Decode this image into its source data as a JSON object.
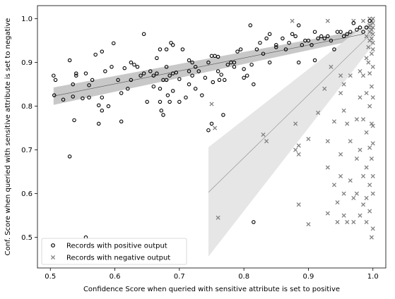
{
  "chart_data": {
    "type": "scatter",
    "title": "",
    "xlabel": "Confidence Score when queried with sensitive attribute is set to positive",
    "ylabel": "Conf. Score when queried with sensitive attribute is set to negative",
    "xlim": [
      0.48,
      1.02
    ],
    "ylim": [
      0.43,
      1.03
    ],
    "xticks": [
      0.5,
      0.6,
      0.7,
      0.8,
      0.9,
      1.0
    ],
    "xtick_labels": [
      "0.5",
      "0.6",
      "0.7",
      "0.8",
      "0.9",
      "1.0"
    ],
    "yticks": [
      0.5,
      0.6,
      0.7,
      0.8,
      0.9,
      1.0
    ],
    "ytick_labels": [
      "0.5",
      "0.6",
      "0.7",
      "0.8",
      "0.9",
      "1.0"
    ],
    "grid": false,
    "legend_position": "lower-left",
    "series": [
      {
        "name": "Records with positive output",
        "marker": "circle",
        "color": "#000000",
        "points": [
          [
            0.505,
            0.87
          ],
          [
            0.508,
            0.86
          ],
          [
            0.506,
            0.825
          ],
          [
            0.52,
            0.815
          ],
          [
            0.53,
            0.905
          ],
          [
            0.53,
            0.685
          ],
          [
            0.535,
            0.85
          ],
          [
            0.535,
            0.822
          ],
          [
            0.537,
            0.768
          ],
          [
            0.54,
            0.87
          ],
          [
            0.54,
            0.875
          ],
          [
            0.55,
            0.818
          ],
          [
            0.555,
            0.875
          ],
          [
            0.555,
            0.5
          ],
          [
            0.56,
            0.848
          ],
          [
            0.56,
            0.82
          ],
          [
            0.565,
            0.86
          ],
          [
            0.57,
            0.918
          ],
          [
            0.575,
            0.76
          ],
          [
            0.575,
            0.802
          ],
          [
            0.58,
            0.82
          ],
          [
            0.58,
            0.79
          ],
          [
            0.58,
            0.925
          ],
          [
            0.585,
            0.88
          ],
          [
            0.59,
            0.8
          ],
          [
            0.595,
            0.89
          ],
          [
            0.598,
            0.944
          ],
          [
            0.605,
            0.86
          ],
          [
            0.61,
            0.765
          ],
          [
            0.61,
            0.83
          ],
          [
            0.615,
            0.887
          ],
          [
            0.62,
            0.84
          ],
          [
            0.625,
            0.86
          ],
          [
            0.625,
            0.9
          ],
          [
            0.63,
            0.895
          ],
          [
            0.635,
            0.89
          ],
          [
            0.64,
            0.87
          ],
          [
            0.645,
            0.965
          ],
          [
            0.645,
            0.875
          ],
          [
            0.65,
            0.81
          ],
          [
            0.655,
            0.88
          ],
          [
            0.66,
            0.87
          ],
          [
            0.66,
            0.845
          ],
          [
            0.665,
            0.91
          ],
          [
            0.665,
            0.875
          ],
          [
            0.67,
            0.93
          ],
          [
            0.67,
            0.81
          ],
          [
            0.67,
            0.84
          ],
          [
            0.672,
            0.79
          ],
          [
            0.675,
            0.86
          ],
          [
            0.675,
            0.78
          ],
          [
            0.68,
            0.93
          ],
          [
            0.68,
            0.89
          ],
          [
            0.68,
            0.86
          ],
          [
            0.682,
            0.825
          ],
          [
            0.685,
            0.87
          ],
          [
            0.685,
            0.81
          ],
          [
            0.687,
            0.945
          ],
          [
            0.69,
            0.94
          ],
          [
            0.69,
            0.875
          ],
          [
            0.69,
            0.835
          ],
          [
            0.695,
            0.877
          ],
          [
            0.7,
            0.862
          ],
          [
            0.7,
            0.81
          ],
          [
            0.705,
            0.93
          ],
          [
            0.71,
            0.82
          ],
          [
            0.715,
            0.85
          ],
          [
            0.715,
            0.88
          ],
          [
            0.715,
            0.905
          ],
          [
            0.72,
            0.87
          ],
          [
            0.72,
            0.9
          ],
          [
            0.725,
            0.84
          ],
          [
            0.725,
            0.89
          ],
          [
            0.73,
            0.88
          ],
          [
            0.735,
            0.825
          ],
          [
            0.74,
            0.865
          ],
          [
            0.745,
            0.9
          ],
          [
            0.745,
            0.745
          ],
          [
            0.75,
            0.76
          ],
          [
            0.75,
            0.915
          ],
          [
            0.752,
            0.855
          ],
          [
            0.755,
            0.915
          ],
          [
            0.76,
            0.913
          ],
          [
            0.76,
            0.88
          ],
          [
            0.762,
            0.86
          ],
          [
            0.765,
            0.872
          ],
          [
            0.768,
            0.78
          ],
          [
            0.77,
            0.86
          ],
          [
            0.775,
            0.895
          ],
          [
            0.78,
            0.9
          ],
          [
            0.785,
            0.9
          ],
          [
            0.785,
            0.89
          ],
          [
            0.79,
            0.925
          ],
          [
            0.795,
            0.93
          ],
          [
            0.8,
            0.865
          ],
          [
            0.8,
            0.885
          ],
          [
            0.805,
            0.87
          ],
          [
            0.81,
            0.985
          ],
          [
            0.812,
            0.895
          ],
          [
            0.815,
            0.85
          ],
          [
            0.815,
            0.535
          ],
          [
            0.82,
            0.93
          ],
          [
            0.825,
            0.945
          ],
          [
            0.83,
            0.92
          ],
          [
            0.835,
            0.955
          ],
          [
            0.84,
            0.965
          ],
          [
            0.84,
            0.9
          ],
          [
            0.85,
            0.935
          ],
          [
            0.85,
            0.94
          ],
          [
            0.86,
            0.955
          ],
          [
            0.865,
            0.93
          ],
          [
            0.87,
            0.945
          ],
          [
            0.875,
            0.965
          ],
          [
            0.88,
            0.96
          ],
          [
            0.885,
            0.985
          ],
          [
            0.885,
            0.9
          ],
          [
            0.89,
            0.94
          ],
          [
            0.895,
            0.95
          ],
          [
            0.9,
            0.95
          ],
          [
            0.905,
            0.94
          ],
          [
            0.91,
            0.905
          ],
          [
            0.91,
            0.97
          ],
          [
            0.915,
            0.955
          ],
          [
            0.92,
            0.96
          ],
          [
            0.925,
            0.955
          ],
          [
            0.93,
            0.96
          ],
          [
            0.935,
            0.95
          ],
          [
            0.94,
            0.93
          ],
          [
            0.945,
            0.97
          ],
          [
            0.95,
            0.97
          ],
          [
            0.955,
            0.96
          ],
          [
            0.96,
            0.965
          ],
          [
            0.965,
            0.97
          ],
          [
            0.97,
            0.99
          ],
          [
            0.975,
            0.975
          ],
          [
            0.98,
            0.98
          ],
          [
            0.985,
            0.97
          ],
          [
            0.99,
            0.98
          ],
          [
            0.995,
            0.995
          ]
        ]
      },
      {
        "name": "Records with negative output",
        "marker": "x",
        "color": "#808080",
        "points": [
          [
            0.75,
            0.805
          ],
          [
            0.755,
            0.75
          ],
          [
            0.76,
            0.545
          ],
          [
            0.83,
            0.735
          ],
          [
            0.835,
            0.72
          ],
          [
            0.875,
            0.995
          ],
          [
            0.88,
            0.76
          ],
          [
            0.88,
            0.7
          ],
          [
            0.885,
            0.69
          ],
          [
            0.885,
            0.575
          ],
          [
            0.885,
            0.71
          ],
          [
            0.9,
            0.725
          ],
          [
            0.9,
            0.53
          ],
          [
            0.915,
            0.785
          ],
          [
            0.925,
            0.84
          ],
          [
            0.93,
            0.995
          ],
          [
            0.93,
            0.72
          ],
          [
            0.93,
            0.66
          ],
          [
            0.93,
            0.555
          ],
          [
            0.935,
            0.89
          ],
          [
            0.94,
            0.765
          ],
          [
            0.94,
            0.62
          ],
          [
            0.945,
            0.58
          ],
          [
            0.945,
            0.535
          ],
          [
            0.95,
            0.87
          ],
          [
            0.95,
            0.83
          ],
          [
            0.95,
            0.69
          ],
          [
            0.95,
            0.64
          ],
          [
            0.955,
            0.85
          ],
          [
            0.955,
            0.79
          ],
          [
            0.955,
            0.6
          ],
          [
            0.955,
            0.55
          ],
          [
            0.96,
            0.535
          ],
          [
            0.96,
            0.76
          ],
          [
            0.965,
            0.87
          ],
          [
            0.965,
            0.72
          ],
          [
            0.965,
            0.63
          ],
          [
            0.97,
            0.535
          ],
          [
            0.97,
            0.995
          ],
          [
            0.97,
            0.59
          ],
          [
            0.975,
            0.77
          ],
          [
            0.975,
            0.68
          ],
          [
            0.975,
            0.6
          ],
          [
            0.98,
            0.88
          ],
          [
            0.98,
            0.82
          ],
          [
            0.98,
            0.7
          ],
          [
            0.98,
            0.55
          ],
          [
            0.985,
            0.995
          ],
          [
            0.985,
            0.87
          ],
          [
            0.985,
            0.77
          ],
          [
            0.985,
            0.64
          ],
          [
            0.985,
            0.575
          ],
          [
            0.99,
            0.96
          ],
          [
            0.99,
            0.91
          ],
          [
            0.99,
            0.83
          ],
          [
            0.99,
            0.74
          ],
          [
            0.99,
            0.66
          ],
          [
            0.99,
            0.59
          ],
          [
            0.99,
            0.535
          ],
          [
            0.993,
            0.98
          ],
          [
            0.993,
            0.935
          ],
          [
            0.993,
            0.9
          ],
          [
            0.995,
            1.0
          ],
          [
            0.995,
            0.985
          ],
          [
            0.995,
            0.97
          ],
          [
            0.995,
            0.95
          ],
          [
            0.995,
            0.875
          ],
          [
            0.995,
            0.8
          ],
          [
            0.995,
            0.705
          ],
          [
            0.995,
            0.62
          ],
          [
            0.995,
            0.56
          ],
          [
            0.998,
            0.995
          ],
          [
            0.998,
            0.975
          ],
          [
            0.998,
            0.955
          ],
          [
            0.998,
            0.92
          ],
          [
            0.998,
            0.845
          ],
          [
            0.998,
            0.76
          ],
          [
            0.998,
            0.68
          ],
          [
            0.998,
            0.5
          ],
          [
            1.0,
            1.0
          ],
          [
            1.0,
            0.99
          ],
          [
            1.0,
            0.98
          ],
          [
            1.0,
            0.965
          ],
          [
            1.0,
            0.945
          ],
          [
            1.0,
            0.93
          ],
          [
            1.0,
            0.89
          ],
          [
            1.0,
            0.82
          ],
          [
            1.0,
            0.755
          ],
          [
            1.0,
            0.715
          ],
          [
            1.0,
            0.64
          ],
          [
            1.0,
            0.6
          ],
          [
            1.0,
            0.52
          ]
        ]
      }
    ],
    "fits": [
      {
        "series": "Records with positive output",
        "x": [
          0.505,
          0.985
        ],
        "y": [
          0.823,
          0.965
        ],
        "band_lower": [
          0.803,
          0.955
        ],
        "band_upper": [
          0.843,
          0.975
        ],
        "line_color": "#555555",
        "band_color": "#c8c8c8"
      },
      {
        "series": "Records with negative output",
        "x": [
          0.745,
          1.0
        ],
        "y": [
          0.603,
          0.97
        ],
        "band_lower": [
          0.456,
          0.94
        ],
        "band_upper": [
          0.706,
          1.0
        ],
        "line_color": "#888888",
        "band_color": "#e6e6e6"
      }
    ]
  }
}
